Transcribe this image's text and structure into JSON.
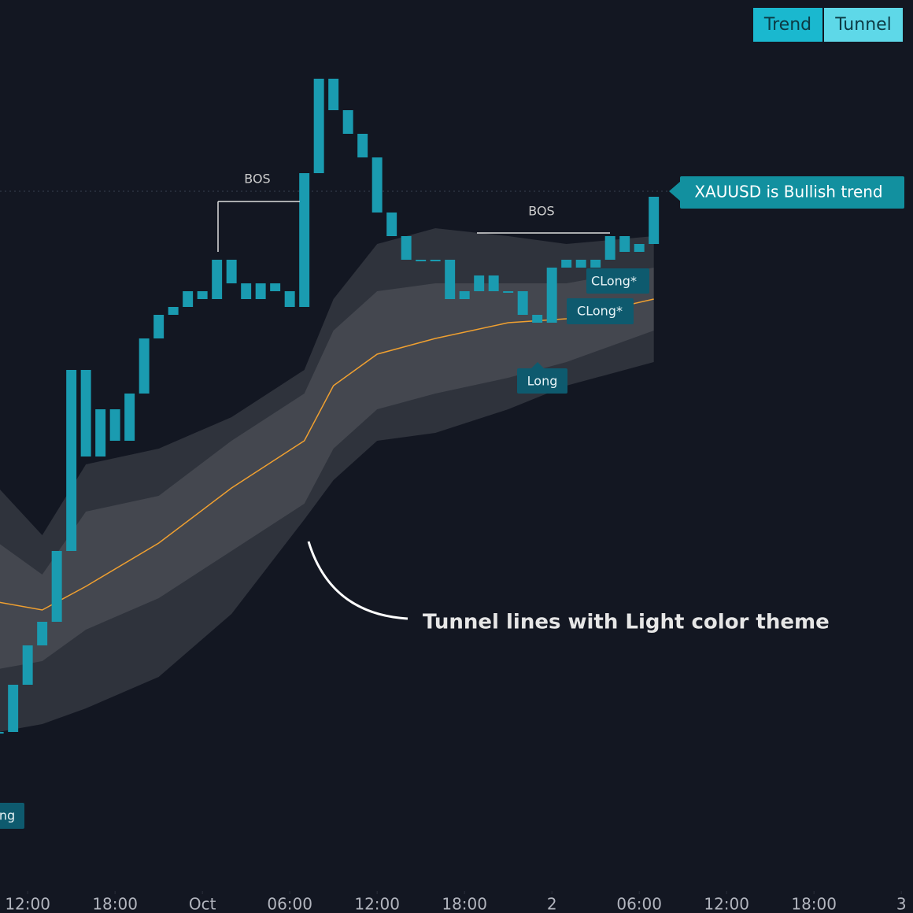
{
  "chart_data": {
    "type": "candlestick",
    "x": [
      -2,
      -1,
      0,
      1,
      2,
      3,
      4,
      5,
      6,
      7,
      8,
      9,
      10,
      11,
      12,
      13,
      14,
      15,
      16,
      17,
      18,
      19,
      20,
      21,
      22,
      23,
      24,
      25,
      26,
      27,
      28,
      29,
      30,
      31,
      32,
      33,
      34,
      35,
      36,
      37,
      38,
      39,
      40,
      41,
      42,
      43
    ],
    "values": [
      2623,
      2629,
      2634,
      2637,
      2646,
      2669,
      2658,
      2664,
      2660,
      2666,
      2673,
      2676,
      2677,
      2679,
      2678,
      2683,
      2680,
      2678,
      2680,
      2679,
      2677,
      2694,
      2706,
      2702,
      2699,
      2696,
      2689,
      2686,
      2683,
      2683,
      2683,
      2678,
      2679,
      2681,
      2679,
      2679,
      2676,
      2675,
      2682,
      2683,
      2682,
      2683,
      2686,
      2684,
      2685,
      2691
    ],
    "color": "#1a9bb0",
    "tunnel": {
      "x": [
        -2,
        1,
        4,
        9,
        14,
        19,
        21,
        24,
        28,
        33,
        37,
        43
      ],
      "center": [
        2639.5,
        2638.5,
        2641.5,
        2647,
        2654,
        2660,
        2667,
        2671,
        2673,
        2675,
        2675.5,
        2678
      ],
      "outer_upper": [
        2654,
        2648,
        2657,
        2659,
        2663,
        2669,
        2678,
        2685,
        2687,
        2686,
        2685,
        2686
      ],
      "inner_upper": [
        2647,
        2643,
        2651,
        2653,
        2660,
        2666,
        2674,
        2679,
        2680,
        2680,
        2680,
        2682
      ],
      "inner_lower": [
        2631,
        2632,
        2636,
        2640,
        2646,
        2652,
        2659,
        2664,
        2666,
        2668,
        2670,
        2674
      ],
      "outer_lower": [
        2623,
        2624,
        2626,
        2630,
        2638,
        2650,
        2655,
        2660,
        2661,
        2664,
        2667,
        2670
      ],
      "color": "#f0a030"
    },
    "xlim": [
      -1.9,
      60.8
    ],
    "ylim": [
      2600,
      2716
    ],
    "xticks": [
      {
        "value": 0,
        "label": "12:00"
      },
      {
        "value": 6,
        "label": "18:00"
      },
      {
        "value": 12,
        "label": "Oct"
      },
      {
        "value": 18,
        "label": "06:00"
      },
      {
        "value": 24,
        "label": "12:00"
      },
      {
        "value": 30,
        "label": "18:00"
      },
      {
        "value": 36,
        "label": "2"
      },
      {
        "value": 42,
        "label": "06:00"
      },
      {
        "value": 48,
        "label": "12:00"
      },
      {
        "value": 54,
        "label": "18:00"
      },
      {
        "value": 60,
        "label": "3"
      }
    ]
  },
  "toolbar": {
    "buttons": [
      "Trend",
      "Tunnel"
    ]
  },
  "annotations": {
    "bos_1": "BOS",
    "bos_2": "BOS",
    "trend_label": "XAUUSD is Bullish trend",
    "long": "Long",
    "clong_1": "CLong*",
    "clong_2": "CLong*",
    "cut_label": "ng",
    "callout": "Tunnel lines with Light color theme"
  }
}
